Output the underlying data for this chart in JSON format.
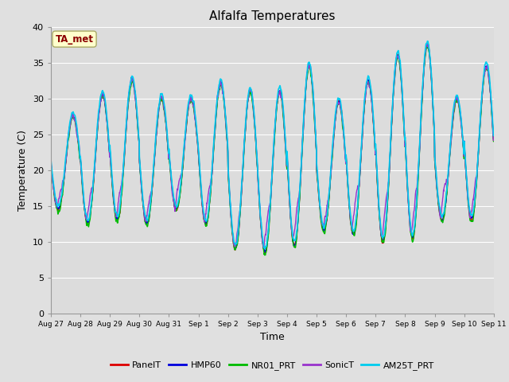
{
  "title": "Alfalfa Temperatures",
  "xlabel": "Time",
  "ylabel": "Temperature (C)",
  "ylim": [
    0,
    40
  ],
  "yticks": [
    0,
    5,
    10,
    15,
    20,
    25,
    30,
    35,
    40
  ],
  "annotation_text": "TA_met",
  "annotation_color": "#8B0000",
  "annotation_bg": "#FFFFCC",
  "series_order": [
    "PanelT",
    "HMP60",
    "NR01_PRT",
    "SonicT",
    "AM25T_PRT"
  ],
  "series": {
    "PanelT": {
      "color": "#DD0000",
      "lw": 1.0
    },
    "HMP60": {
      "color": "#0000DD",
      "lw": 1.0
    },
    "NR01_PRT": {
      "color": "#00BB00",
      "lw": 1.0
    },
    "SonicT": {
      "color": "#9933CC",
      "lw": 1.0
    },
    "AM25T_PRT": {
      "color": "#00CCEE",
      "lw": 1.2
    }
  },
  "x_tick_labels": [
    "Aug 27",
    "Aug 28",
    "Aug 29",
    "Aug 30",
    "Aug 31",
    "Sep 1",
    "Sep 2",
    "Sep 3",
    "Sep 4",
    "Sep 5",
    "Sep 6",
    "Sep 7",
    "Sep 8",
    "Sep 9",
    "Sep 10",
    "Sep 11"
  ],
  "fig_bg": "#E0E0E0",
  "plot_bg": "#DCDCDC",
  "grid_color": "#FFFFFF",
  "n_days": 15,
  "pts_per_day": 144,
  "daily_peaks": [
    27.5,
    30.5,
    32.5,
    30.0,
    30.0,
    32.0,
    31.0,
    31.0,
    34.5,
    29.5,
    32.5,
    36.0,
    37.5,
    30.0,
    34.5
  ],
  "daily_mins": [
    14.5,
    12.5,
    13.0,
    12.5,
    14.5,
    12.5,
    9.0,
    8.5,
    9.5,
    11.5,
    11.0,
    10.0,
    10.5,
    13.0,
    13.0
  ]
}
